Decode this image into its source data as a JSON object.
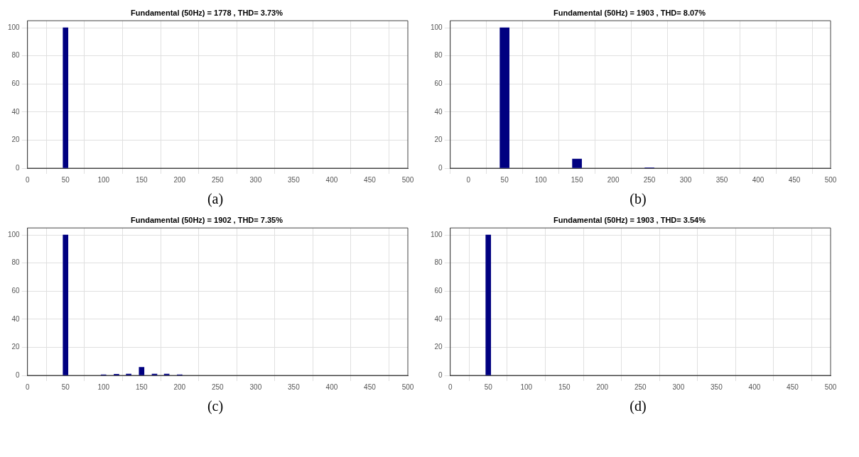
{
  "chart_data": [
    {
      "type": "bar",
      "title": "Fundamental (50Hz) = 1778 , THD= 3.73%",
      "x": [
        50
      ],
      "values": [
        100
      ],
      "color": "#000080",
      "xlim": [
        0,
        500
      ],
      "xticks": [
        0,
        50,
        100,
        150,
        200,
        250,
        300,
        350,
        400,
        450,
        500
      ],
      "ylim": [
        0,
        105
      ],
      "yticks": [
        0,
        20,
        40,
        60,
        80,
        100
      ],
      "grid": true,
      "annotations": [
        "(a)"
      ]
    },
    {
      "type": "bar",
      "title": "Fundamental (50Hz) = 1903 , THD= 8.07%",
      "x": [
        50,
        150,
        250
      ],
      "values": [
        100,
        6.5,
        0.3
      ],
      "color": "#000080",
      "xlim": [
        -25,
        500
      ],
      "xticks": [
        0,
        50,
        100,
        150,
        200,
        250,
        300,
        350,
        400,
        450,
        500
      ],
      "ylim": [
        0,
        105
      ],
      "yticks": [
        0,
        20,
        40,
        60,
        80,
        100
      ],
      "grid": true,
      "annotations": [
        "(b)"
      ]
    },
    {
      "type": "bar",
      "title": "Fundamental (50Hz) = 1902 , THD= 7.35%",
      "x": [
        50,
        100,
        117,
        133,
        150,
        167,
        183,
        200
      ],
      "values": [
        100,
        0.5,
        0.8,
        1,
        5.8,
        1,
        1,
        0.5
      ],
      "color": "#000080",
      "xlim": [
        0,
        500
      ],
      "xticks": [
        0,
        50,
        100,
        150,
        200,
        250,
        300,
        350,
        400,
        450,
        500
      ],
      "ylim": [
        0,
        105
      ],
      "yticks": [
        0,
        20,
        40,
        60,
        80,
        100
      ],
      "grid": true,
      "annotations": [
        "(c)"
      ]
    },
    {
      "type": "bar",
      "title": "Fundamental (50Hz) = 1903 , THD= 3.54%",
      "x": [
        50
      ],
      "values": [
        100
      ],
      "color": "#000080",
      "xlim": [
        0,
        500
      ],
      "xticks": [
        0,
        50,
        100,
        150,
        200,
        250,
        300,
        350,
        400,
        450,
        500
      ],
      "ylim": [
        0,
        105
      ],
      "yticks": [
        0,
        20,
        40,
        60,
        80,
        100
      ],
      "grid": true,
      "annotations": [
        "(d)"
      ]
    }
  ]
}
